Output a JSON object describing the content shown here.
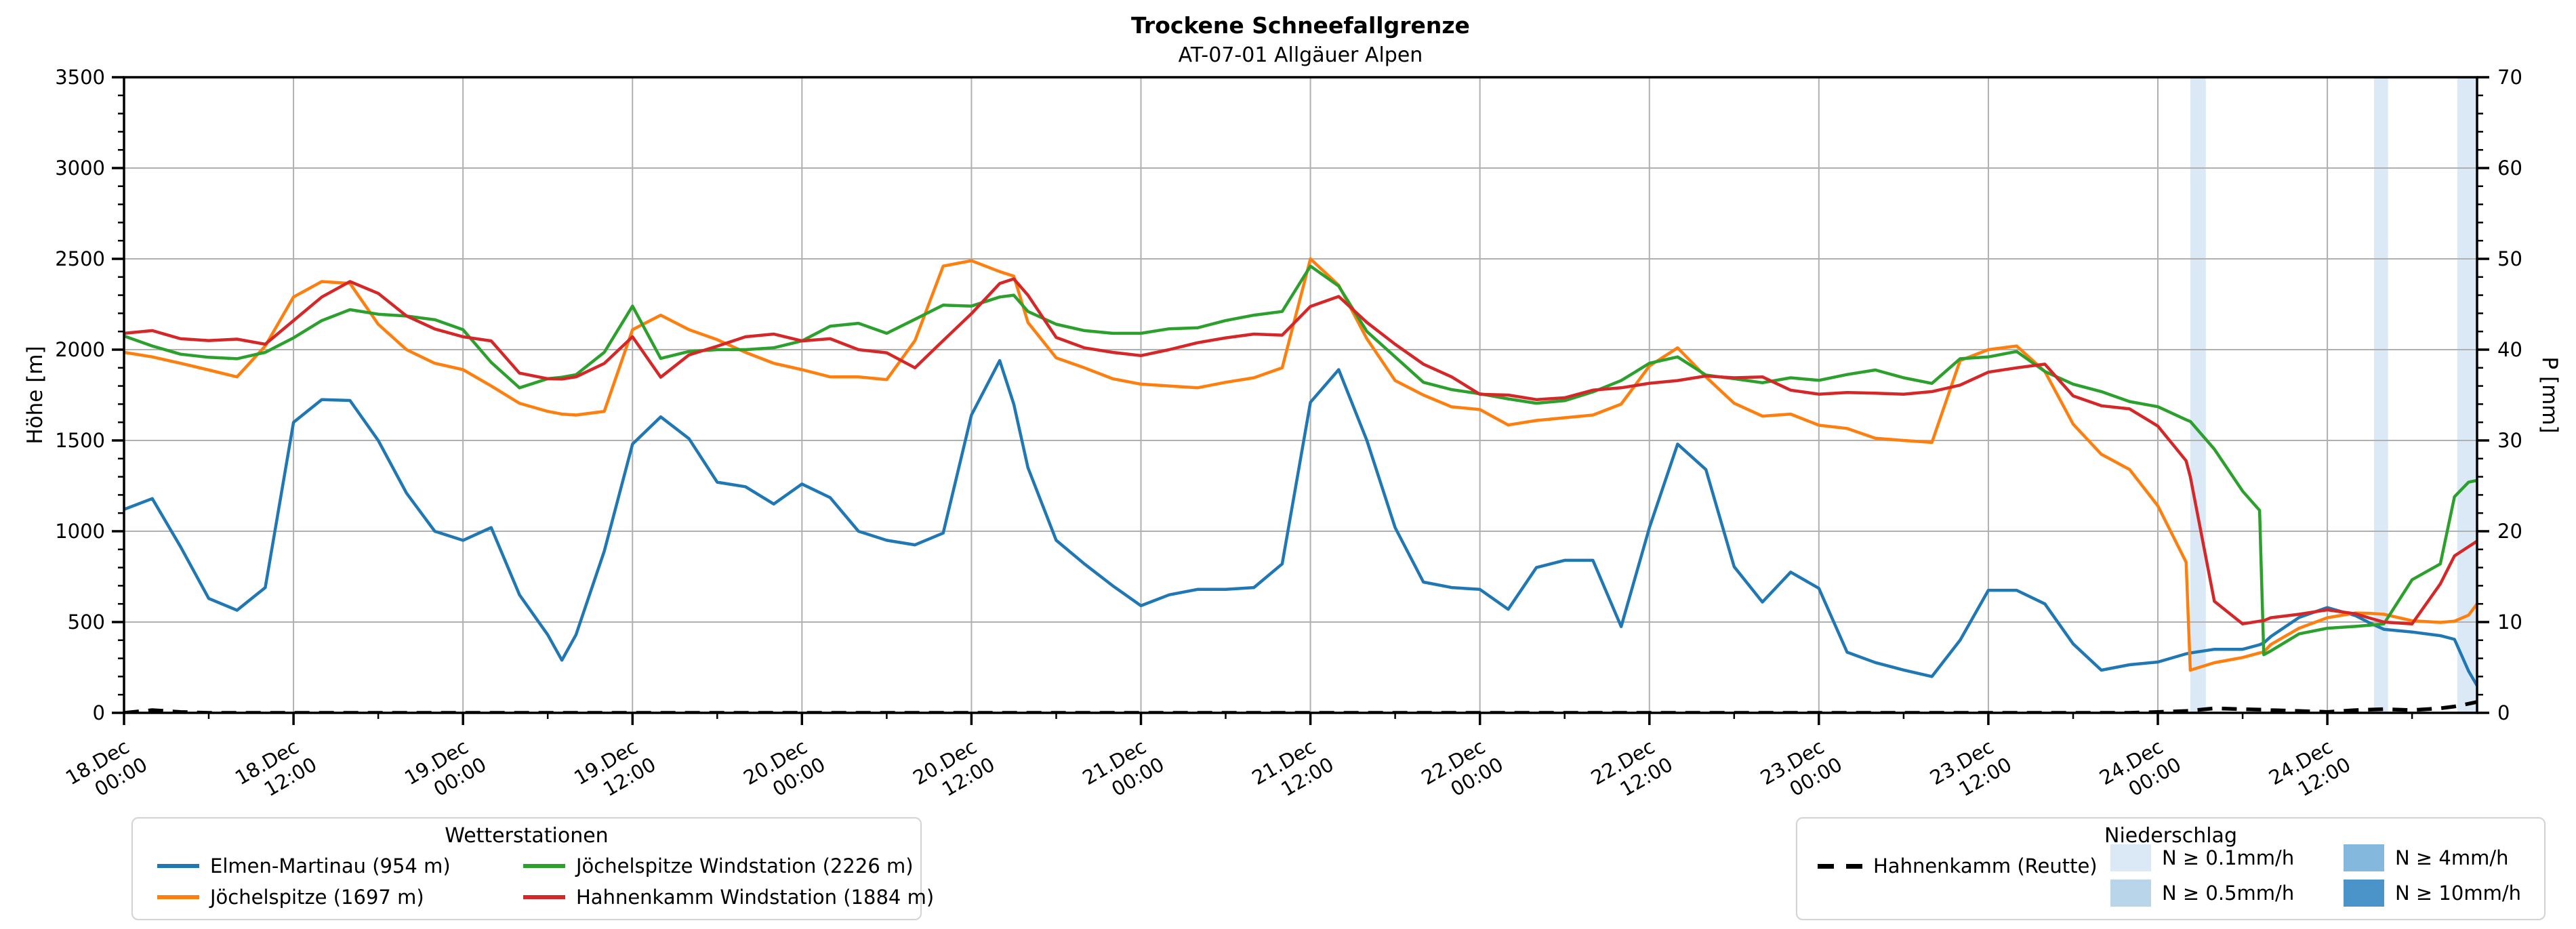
{
  "page": {
    "title": "Trockene Schneefallgrenze",
    "subtitle": "AT-07-01 Allgäuer Alpen"
  },
  "axes": {
    "y_left_label": "Höhe [m]",
    "y_right_label": "P [mm]",
    "y_left_ticks": [
      0,
      500,
      1000,
      1500,
      2000,
      2500,
      3000,
      3500
    ],
    "y_right_ticks": [
      0,
      10,
      20,
      30,
      40,
      50,
      60,
      70
    ]
  },
  "legend_stations": {
    "title": "Wetterstationen",
    "items": [
      {
        "label": "Elmen-Martinau (954 m)",
        "color": "#1f77b4"
      },
      {
        "label": "Jöchelspitze (1697 m)",
        "color": "#ff7f0e"
      },
      {
        "label": "Jöchelspitze Windstation (2226 m)",
        "color": "#2ca02c"
      },
      {
        "label": "Hahnenkamm Windstation (1884 m)",
        "color": "#d62728"
      }
    ]
  },
  "legend_precip": {
    "title": "Niederschlag",
    "line_item": {
      "label": "Hahnenkamm (Reutte)",
      "color": "#000000",
      "style": "dashed"
    },
    "patch_items": [
      {
        "label": "N ≥ 0.1mm/h",
        "color": "#dbe9f6"
      },
      {
        "label": "N ≥ 0.5mm/h",
        "color": "#b9d5ea"
      },
      {
        "label": "N ≥ 4mm/h",
        "color": "#85b8dd"
      },
      {
        "label": "N ≥ 10mm/h",
        "color": "#4a94c9"
      }
    ]
  },
  "chart_data": {
    "type": "line",
    "title": "Trockene Schneefallgrenze",
    "subtitle": "AT-07-01 Allgäuer Alpen",
    "xlabel": "",
    "ylabel_left": "Höhe [m]",
    "ylabel_right": "P [mm]",
    "x_unit": "hours since 18.Dec 00:00",
    "xlim": [
      0,
      166.6
    ],
    "ylim_left": [
      0,
      3500
    ],
    "ylim_right": [
      0,
      70
    ],
    "grid": true,
    "x_ticks": [
      {
        "h": 0,
        "date": "18.Dec",
        "time": "00:00"
      },
      {
        "h": 12,
        "date": "18.Dec",
        "time": "12:00"
      },
      {
        "h": 24,
        "date": "19.Dec",
        "time": "00:00"
      },
      {
        "h": 36,
        "date": "19.Dec",
        "time": "12:00"
      },
      {
        "h": 48,
        "date": "20.Dec",
        "time": "00:00"
      },
      {
        "h": 60,
        "date": "20.Dec",
        "time": "12:00"
      },
      {
        "h": 72,
        "date": "21.Dec",
        "time": "00:00"
      },
      {
        "h": 84,
        "date": "21.Dec",
        "time": "12:00"
      },
      {
        "h": 96,
        "date": "22.Dec",
        "time": "00:00"
      },
      {
        "h": 108,
        "date": "22.Dec",
        "time": "12:00"
      },
      {
        "h": 120,
        "date": "23.Dec",
        "time": "00:00"
      },
      {
        "h": 132,
        "date": "23.Dec",
        "time": "12:00"
      },
      {
        "h": 144,
        "date": "24.Dec",
        "time": "00:00"
      },
      {
        "h": 156,
        "date": "24.Dec",
        "time": "12:00"
      }
    ],
    "minor_tick_hours": 6,
    "hours": [
      0,
      2,
      4,
      6,
      8,
      10,
      12,
      14,
      16,
      18,
      20,
      22,
      24,
      26,
      28,
      30,
      31,
      32,
      34,
      36,
      38,
      40,
      42,
      44,
      46,
      48,
      50,
      52,
      54,
      56,
      58,
      60,
      62,
      63,
      64,
      66,
      68,
      70,
      72,
      74,
      76,
      78,
      80,
      82,
      84,
      86,
      88,
      90,
      92,
      94,
      96,
      98,
      100,
      102,
      104,
      106,
      108,
      110,
      112,
      114,
      116,
      118,
      120,
      122,
      124,
      126,
      128,
      130,
      132,
      134,
      136,
      138,
      140,
      142,
      144,
      146,
      146.3,
      148,
      150,
      151.2,
      151.5,
      152,
      154,
      156,
      158,
      159,
      160,
      162,
      164,
      165,
      166,
      166.6
    ],
    "series": [
      {
        "name": "Elmen-Martinau (954 m)",
        "color": "#1f77b4",
        "axis": "left",
        "style": "solid",
        "values": [
          1120,
          1180,
          915,
          630,
          565,
          690,
          1600,
          1725,
          1720,
          1500,
          1210,
          1000,
          950,
          1020,
          650,
          430,
          290,
          430,
          890,
          1480,
          1630,
          1510,
          1270,
          1245,
          1150,
          1260,
          1185,
          1000,
          950,
          925,
          990,
          1640,
          1940,
          1700,
          1350,
          950,
          820,
          700,
          590,
          650,
          680,
          680,
          690,
          820,
          1710,
          1890,
          1500,
          1020,
          720,
          690,
          680,
          570,
          800,
          840,
          840,
          475,
          1020,
          1480,
          1340,
          805,
          610,
          775,
          686,
          334,
          277,
          236,
          200,
          400,
          675,
          675,
          600,
          380,
          235,
          265,
          280,
          325,
          330,
          350,
          350,
          375,
          385,
          420,
          525,
          580,
          535,
          495,
          460,
          445,
          425,
          405,
          230,
          150
        ]
      },
      {
        "name": "Jöchelspitze (1697 m)",
        "color": "#ff7f0e",
        "axis": "left",
        "style": "solid",
        "values": [
          1985,
          1960,
          1925,
          1888,
          1850,
          2020,
          2290,
          2375,
          2365,
          2140,
          2000,
          1925,
          1890,
          1800,
          1705,
          1660,
          1645,
          1640,
          1660,
          2110,
          2190,
          2110,
          2055,
          1985,
          1925,
          1890,
          1850,
          1850,
          1835,
          2050,
          2460,
          2490,
          2430,
          2405,
          2150,
          1955,
          1900,
          1840,
          1810,
          1800,
          1790,
          1820,
          1845,
          1900,
          2500,
          2355,
          2060,
          1830,
          1750,
          1685,
          1670,
          1585,
          1610,
          1625,
          1640,
          1700,
          1910,
          2010,
          1850,
          1705,
          1634,
          1645,
          1584,
          1566,
          1512,
          1500,
          1489,
          1940,
          2000,
          2020,
          1880,
          1590,
          1424,
          1340,
          1140,
          830,
          235,
          276,
          305,
          330,
          335,
          376,
          466,
          524,
          550,
          548,
          543,
          507,
          498,
          505,
          538,
          600
        ]
      },
      {
        "name": "Jöchelspitze Windstation (2226 m)",
        "color": "#2ca02c",
        "axis": "left",
        "style": "solid",
        "values": [
          2075,
          2020,
          1975,
          1958,
          1950,
          1985,
          2065,
          2160,
          2220,
          2195,
          2185,
          2165,
          2110,
          1930,
          1790,
          1840,
          1848,
          1862,
          1985,
          2240,
          1952,
          1990,
          2000,
          2000,
          2010,
          2048,
          2129,
          2145,
          2090,
          2167,
          2245,
          2240,
          2290,
          2300,
          2210,
          2140,
          2105,
          2090,
          2090,
          2115,
          2120,
          2160,
          2190,
          2210,
          2460,
          2350,
          2100,
          1960,
          1820,
          1780,
          1757,
          1729,
          1705,
          1719,
          1767,
          1830,
          1925,
          1960,
          1860,
          1840,
          1818,
          1845,
          1831,
          1863,
          1888,
          1845,
          1814,
          1950,
          1960,
          1990,
          1880,
          1810,
          1769,
          1714,
          1686,
          1614,
          1605,
          1452,
          1221,
          1115,
          320,
          341,
          435,
          466,
          476,
          483,
          490,
          733,
          820,
          1190,
          1270,
          1280
        ]
      },
      {
        "name": "Hahnenkamm Windstation (1884 m)",
        "color": "#d62728",
        "axis": "left",
        "style": "solid",
        "values": [
          2090,
          2105,
          2060,
          2050,
          2058,
          2030,
          2160,
          2290,
          2375,
          2310,
          2186,
          2114,
          2071,
          2048,
          1871,
          1840,
          1838,
          1850,
          1924,
          2071,
          1848,
          1971,
          2019,
          2071,
          2086,
          2048,
          2060,
          2000,
          1983,
          1900,
          2050,
          2198,
          2364,
          2390,
          2300,
          2067,
          2010,
          1985,
          1967,
          2000,
          2038,
          2065,
          2086,
          2080,
          2238,
          2293,
          2150,
          2030,
          1920,
          1850,
          1754,
          1750,
          1725,
          1735,
          1777,
          1790,
          1815,
          1830,
          1855,
          1845,
          1850,
          1777,
          1755,
          1764,
          1760,
          1755,
          1769,
          1805,
          1876,
          1900,
          1920,
          1745,
          1691,
          1674,
          1579,
          1388,
          1300,
          614,
          490,
          505,
          508,
          524,
          543,
          567,
          545,
          522,
          500,
          490,
          710,
          864,
          915,
          945
        ]
      }
    ],
    "precip_line": {
      "name": "Hahnenkamm (Reutte)",
      "color": "#000000",
      "axis": "right",
      "style": "dashed",
      "values": [
        0,
        0.3,
        0.1,
        0,
        0,
        0,
        0,
        0,
        0,
        0,
        0,
        0,
        0,
        0,
        0,
        0,
        0,
        0,
        0,
        0,
        0,
        0,
        0,
        0,
        0,
        0,
        0,
        0,
        0,
        0,
        0,
        0,
        0,
        0,
        0,
        0,
        0,
        0,
        0,
        0,
        0,
        0,
        0,
        0,
        0,
        0,
        0,
        0,
        0,
        0,
        0,
        0,
        0,
        0,
        0,
        0,
        0,
        0,
        0,
        0,
        0,
        0,
        0,
        0,
        0,
        0,
        0,
        0,
        0,
        0,
        0,
        0,
        0,
        0,
        0.1,
        0.2,
        0.25,
        0.5,
        0.4,
        0.35,
        0.35,
        0.3,
        0.2,
        0.1,
        0.3,
        0.35,
        0.4,
        0.3,
        0.5,
        0.7,
        1.0,
        1.2
      ]
    },
    "precip_bands": [
      {
        "start_h": 146.3,
        "end_h": 147.4,
        "level": "N ≥ 0.1mm/h",
        "color": "#dbe9f6"
      },
      {
        "start_h": 159.3,
        "end_h": 160.3,
        "level": "N ≥ 0.1mm/h",
        "color": "#dbe9f6"
      },
      {
        "start_h": 165.2,
        "end_h": 166.6,
        "level": "N ≥ 0.1mm/h",
        "color": "#dbe9f6"
      }
    ],
    "colors": {
      "grid": "#b0b0b0",
      "spine": "#000000"
    }
  }
}
